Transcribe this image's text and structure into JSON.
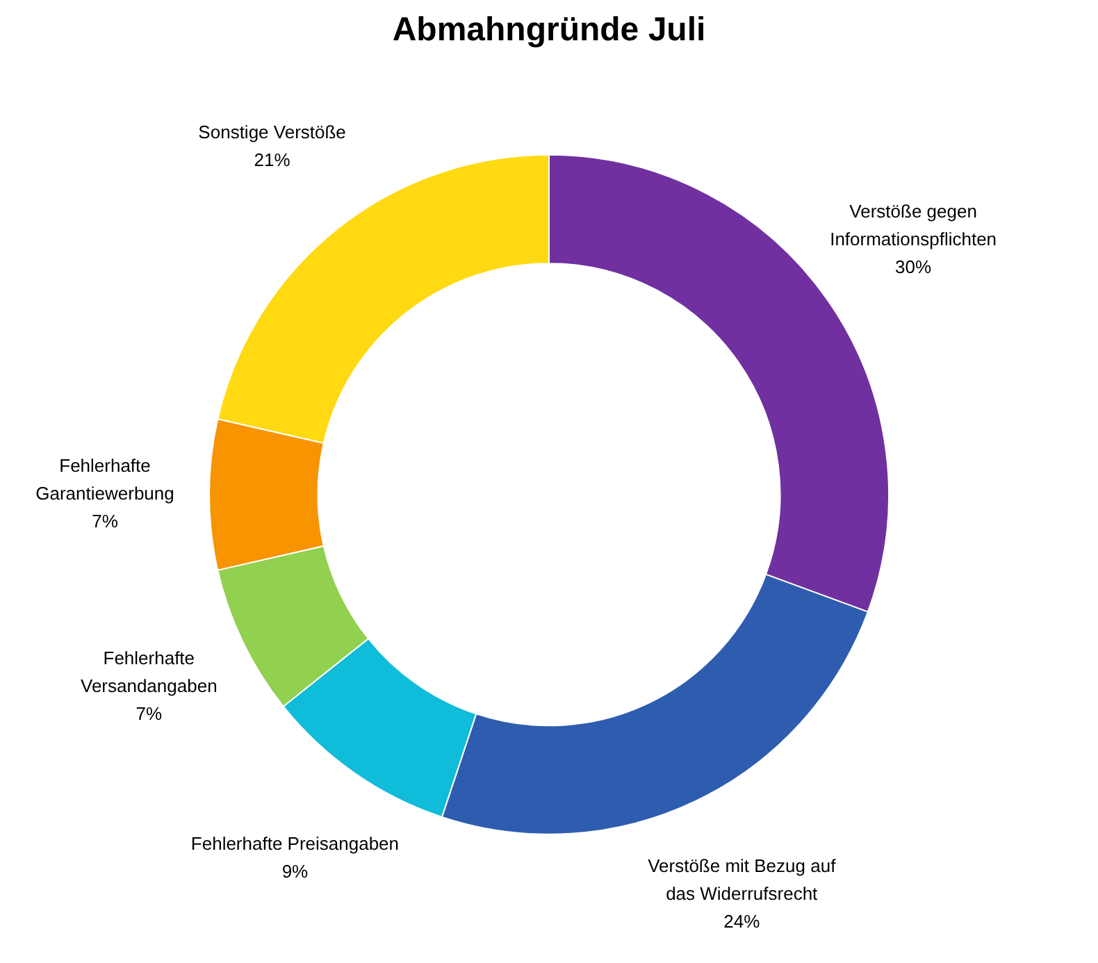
{
  "chart_data": {
    "type": "donut",
    "title": "Abmahngründe Juli",
    "categories": [
      "Verstöße gegen Informationspflichten",
      "Verstöße mit Bezug auf das Widerrufsrecht",
      "Fehlerhafte Preisangaben",
      "Fehlerhafte Versandangaben",
      "Fehlerhafte Garantiewerbung",
      "Sonstige Verstöße"
    ],
    "values": [
      30,
      24,
      9,
      7,
      7,
      21
    ],
    "colors": [
      "#7030a0",
      "#2e5db0",
      "#0fbcd9",
      "#92d050",
      "#f79400",
      "#ffd912"
    ],
    "value_labels": [
      "30%",
      "24%",
      "9%",
      "7%",
      "7%",
      "21%"
    ],
    "legend": false
  }
}
